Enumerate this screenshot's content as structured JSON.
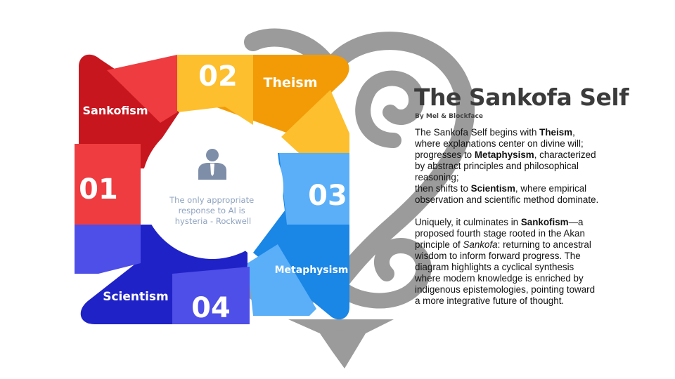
{
  "diagram": {
    "center": {
      "quote": [
        "The only appropriate",
        "response to AI is",
        "hysteria - Rockwell"
      ],
      "icon": "business-person-icon"
    },
    "stages": [
      {
        "number": "01",
        "label": "Sankofism",
        "color": "#c8161f",
        "light_color": "#ee3c40"
      },
      {
        "number": "02",
        "label": "Theism",
        "color": "#f29b06",
        "light_color": "#fdbf2d"
      },
      {
        "number": "03",
        "label": "Metaphysism",
        "color": "#1a86e6",
        "light_color": "#5aaff8"
      },
      {
        "number": "04",
        "label": "Scientism",
        "color": "#1f22c7",
        "light_color": "#4e4ee8"
      }
    ],
    "background_symbol": "sankofa-adinkra-symbol"
  },
  "text_panel": {
    "title": "The Sankofa Self",
    "byline": "By Mel & Blockface",
    "p1": [
      {
        "t": "The Sankofa Self begins with "
      },
      {
        "t": "Theism",
        "b": true
      },
      {
        "t": ", where explanations center on divine will; progresses to "
      },
      {
        "t": "Metaphysism",
        "b": true
      },
      {
        "t": ", characterized by abstract principles and philosophical reasoning;"
      },
      {
        "br": true
      },
      {
        "t": "then shifts to "
      },
      {
        "t": "Scientism",
        "b": true
      },
      {
        "t": ", where empirical observation and scientific method dominate."
      }
    ],
    "p2": [
      {
        "t": "Uniquely, it culminates in "
      },
      {
        "t": "Sankofism",
        "b": true
      },
      {
        "t": "—a proposed fourth stage rooted in the Akan principle of "
      },
      {
        "t": "Sankofa",
        "i": true
      },
      {
        "t": ": returning to ancestral wisdom to inform forward progress. The diagram highlights a cyclical synthesis where modern knowledge is enriched by indigenous epistemologies, pointing toward a more integrative future of thought."
      }
    ]
  }
}
